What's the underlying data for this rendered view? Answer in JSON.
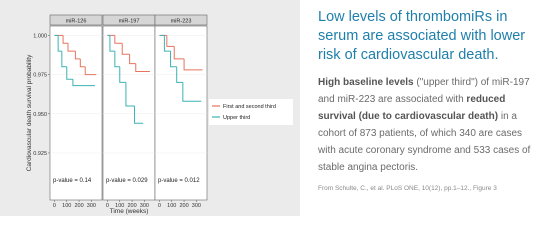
{
  "chart_data": [
    {
      "type": "line",
      "title": "miR-126",
      "annotation": "p-value = 0.14",
      "xlim": [
        -20,
        370
      ],
      "xticks": [
        0,
        100,
        200,
        300
      ],
      "series": [
        {
          "color": "#e8735f",
          "x": [
            0,
            70,
            110,
            170,
            210,
            250
          ],
          "values": [
            1.0,
            0.995,
            0.99,
            0.985,
            0.98,
            0.975
          ],
          "end": 340
        },
        {
          "color": "#3cb3b3",
          "x": [
            0,
            30,
            60,
            100,
            150
          ],
          "values": [
            1.0,
            0.99,
            0.98,
            0.972,
            0.968
          ],
          "end": 330
        }
      ]
    },
    {
      "type": "line",
      "title": "miR-197",
      "annotation": "p-value = 0.029",
      "xlim": [
        -20,
        370
      ],
      "xticks": [
        0,
        100,
        200,
        300
      ],
      "series": [
        {
          "color": "#e8735f",
          "x": [
            0,
            60,
            120,
            180,
            230
          ],
          "values": [
            1.0,
            0.995,
            0.988,
            0.982,
            0.977
          ],
          "end": 345
        },
        {
          "color": "#3cb3b3",
          "x": [
            0,
            20,
            60,
            100,
            150,
            220
          ],
          "values": [
            1.0,
            0.99,
            0.98,
            0.97,
            0.955,
            0.944
          ],
          "end": 290
        }
      ]
    },
    {
      "type": "line",
      "title": "miR-223",
      "annotation": "p-value = 0.012",
      "xlim": [
        -20,
        370
      ],
      "xticks": [
        0,
        100,
        200,
        300
      ],
      "series": [
        {
          "color": "#e8735f",
          "x": [
            0,
            60,
            120,
            200
          ],
          "values": [
            1.0,
            0.993,
            0.985,
            0.978
          ],
          "end": 350
        },
        {
          "color": "#3cb3b3",
          "x": [
            0,
            40,
            90,
            140,
            190
          ],
          "values": [
            1.0,
            0.99,
            0.98,
            0.97,
            0.958
          ],
          "end": 340
        }
      ]
    }
  ],
  "axes": {
    "y_label": "Cardiovascular death survival probability",
    "x_label": "Time (weeks)",
    "ylim": [
      0.895,
      1.006
    ],
    "yticks": [
      {
        "value": 1,
        "label": "1.000"
      },
      0.975,
      {
        "value": 0.95,
        "label": "0.950"
      },
      0.925
    ]
  },
  "legend": {
    "items": [
      {
        "name": "First and second third",
        "color": "#e8735f"
      },
      {
        "name": "Upper third",
        "color": "#3cb3b3"
      }
    ]
  },
  "headline": "Low levels of thrombomiRs in serum are associated with lower risk of cardiovascular death.",
  "body": [
    {
      "text": "High baseline levels",
      "bold": true
    },
    {
      "text": " (\"upper third\") of miR-197 and miR-223 are associated with ",
      "bold": false
    },
    {
      "text": "reduced survival (due to cardiovascular death)",
      "bold": true
    },
    {
      "text": " in a cohort of 873 patients, of which 340 are cases with acute coronary syndrome and 533 cases of stable angina pectoris.",
      "bold": false
    }
  ],
  "source": "From Schulte, C., et al. PLoS ONE, 10(12), pp.1–12., Figure 3"
}
